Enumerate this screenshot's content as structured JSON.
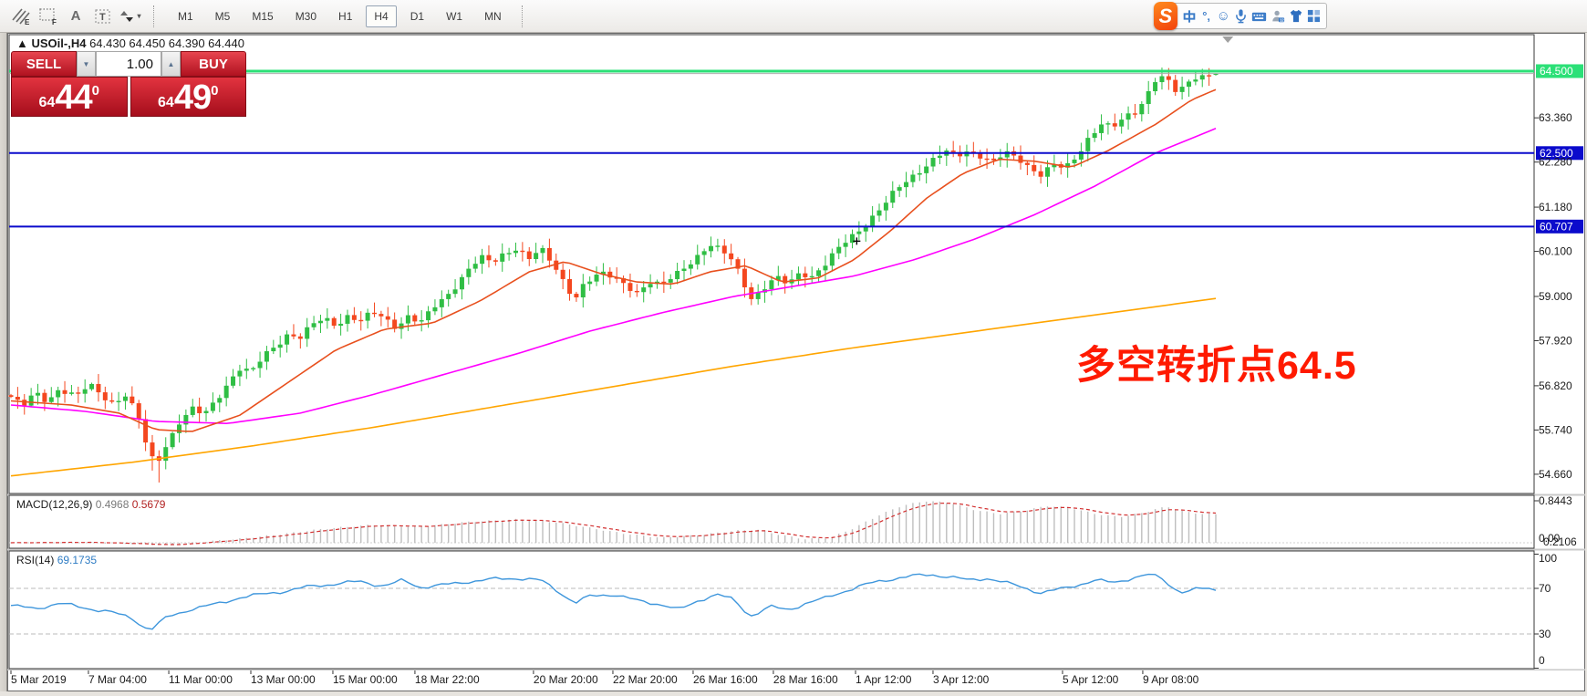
{
  "toolbar": {
    "icons": [
      {
        "name": "drawing-tool-e-icon",
        "label": "E"
      },
      {
        "name": "drawing-tool-f-icon",
        "label": "F"
      },
      {
        "name": "text-label-button",
        "label": "A"
      },
      {
        "name": "text-box-button",
        "label": "T"
      },
      {
        "name": "sort-arrows-button",
        "label": "▾"
      }
    ],
    "timeframes": [
      "M1",
      "M5",
      "M15",
      "M30",
      "H1",
      "H4",
      "D1",
      "W1",
      "MN"
    ],
    "active_timeframe": "H4"
  },
  "ime_bar": {
    "logo": "S",
    "chinese_mode": "中",
    "punctuation": "°‚",
    "emoji": "☺"
  },
  "chart": {
    "title_marker": "▲",
    "symbol_period": "USOil-,H4",
    "ohlc_text": "64.430 64.450 64.390 64.440"
  },
  "trade_panel": {
    "sell_label": "SELL",
    "buy_label": "BUY",
    "volume": "1.00",
    "spin_down": "▼",
    "spin_up": "▲",
    "sell_price": {
      "prefix": "64",
      "big": "44",
      "sup": "0"
    },
    "buy_price": {
      "prefix": "64",
      "big": "49",
      "sup": "0"
    }
  },
  "annotation": {
    "text": "多空转折点64.5",
    "color": "#FF1A00"
  },
  "indicators": {
    "macd": {
      "label": "MACD(12,26,9)",
      "value_main": "0.4968",
      "value_signal": "0.5679",
      "scale_top": "0.8443",
      "scale_mid": "0.2106",
      "scale_zero": "0.00"
    },
    "rsi": {
      "label": "RSI(14)",
      "value": "69.1735",
      "levels": [
        "100",
        "70",
        "30",
        "0"
      ]
    }
  },
  "chart_data": {
    "type": "candlestick",
    "symbol": "USOil-",
    "timeframe": "H4",
    "title": "USOil-,H4 64.430 64.450 64.390 64.440",
    "ohlc_current": {
      "open": 64.43,
      "high": 64.45,
      "low": 64.39,
      "close": 64.44
    },
    "ylim": [
      54.19,
      65.39
    ],
    "grid": false,
    "num_candles": 180,
    "bull_color": "#2FBE44",
    "bear_color": "#F4471F",
    "price_axis_ticks": [
      "63.360",
      "62.280",
      "61.180",
      "60.100",
      "59.000",
      "57.920",
      "56.820",
      "55.740",
      "54.660"
    ],
    "price_lines": [
      {
        "price": 64.5,
        "label": "64.500",
        "color": "#2BE077",
        "width": 3
      },
      {
        "price": 62.5,
        "label": "62.500",
        "color": "#0B0BCC",
        "width": 2
      },
      {
        "price": 60.707,
        "label": "60.707",
        "color": "#0B0BCC",
        "width": 2
      }
    ],
    "bid_line": {
      "price": 64.44,
      "color": "#ABABAB"
    },
    "cross_marker": {
      "f": 0.702,
      "price": 60.35
    },
    "shift_marker_x_f": 1.01,
    "close_path": [
      [
        0,
        56.55
      ],
      [
        0.01,
        56.3
      ],
      [
        0.02,
        56.65
      ],
      [
        0.03,
        56.45
      ],
      [
        0.04,
        56.75
      ],
      [
        0.055,
        56.55
      ],
      [
        0.065,
        56.85
      ],
      [
        0.075,
        56.6
      ],
      [
        0.085,
        56.4
      ],
      [
        0.095,
        56.6
      ],
      [
        0.105,
        56.1
      ],
      [
        0.112,
        55.4
      ],
      [
        0.12,
        54.85
      ],
      [
        0.128,
        55.35
      ],
      [
        0.14,
        55.95
      ],
      [
        0.15,
        56.25
      ],
      [
        0.16,
        56.1
      ],
      [
        0.17,
        56.45
      ],
      [
        0.18,
        56.9
      ],
      [
        0.19,
        57.25
      ],
      [
        0.2,
        57.15
      ],
      [
        0.21,
        57.55
      ],
      [
        0.22,
        57.8
      ],
      [
        0.23,
        58.1
      ],
      [
        0.24,
        58.0
      ],
      [
        0.25,
        58.3
      ],
      [
        0.26,
        58.45
      ],
      [
        0.27,
        58.3
      ],
      [
        0.28,
        58.55
      ],
      [
        0.29,
        58.4
      ],
      [
        0.3,
        58.6
      ],
      [
        0.31,
        58.45
      ],
      [
        0.32,
        58.25
      ],
      [
        0.33,
        58.55
      ],
      [
        0.34,
        58.35
      ],
      [
        0.35,
        58.7
      ],
      [
        0.36,
        58.95
      ],
      [
        0.37,
        59.3
      ],
      [
        0.38,
        59.7
      ],
      [
        0.39,
        59.95
      ],
      [
        0.4,
        59.8
      ],
      [
        0.41,
        60.05
      ],
      [
        0.42,
        60.2
      ],
      [
        0.43,
        59.95
      ],
      [
        0.44,
        60.15
      ],
      [
        0.45,
        59.75
      ],
      [
        0.46,
        59.3
      ],
      [
        0.468,
        58.95
      ],
      [
        0.476,
        59.35
      ],
      [
        0.49,
        59.55
      ],
      [
        0.5,
        59.45
      ],
      [
        0.51,
        59.3
      ],
      [
        0.52,
        59.1
      ],
      [
        0.53,
        59.35
      ],
      [
        0.54,
        59.25
      ],
      [
        0.55,
        59.5
      ],
      [
        0.56,
        59.75
      ],
      [
        0.57,
        60.0
      ],
      [
        0.58,
        60.25
      ],
      [
        0.59,
        60.1
      ],
      [
        0.6,
        59.85
      ],
      [
        0.608,
        59.35
      ],
      [
        0.615,
        58.95
      ],
      [
        0.625,
        59.2
      ],
      [
        0.635,
        59.45
      ],
      [
        0.645,
        59.3
      ],
      [
        0.655,
        59.6
      ],
      [
        0.665,
        59.5
      ],
      [
        0.675,
        59.75
      ],
      [
        0.685,
        60.1
      ],
      [
        0.695,
        60.4
      ],
      [
        0.705,
        60.65
      ],
      [
        0.715,
        60.95
      ],
      [
        0.725,
        61.25
      ],
      [
        0.735,
        61.6
      ],
      [
        0.745,
        61.85
      ],
      [
        0.755,
        62.1
      ],
      [
        0.765,
        62.35
      ],
      [
        0.775,
        62.55
      ],
      [
        0.785,
        62.4
      ],
      [
        0.795,
        62.55
      ],
      [
        0.805,
        62.45
      ],
      [
        0.815,
        62.3
      ],
      [
        0.825,
        62.5
      ],
      [
        0.835,
        62.35
      ],
      [
        0.845,
        62.15
      ],
      [
        0.855,
        62.0
      ],
      [
        0.865,
        62.25
      ],
      [
        0.875,
        62.1
      ],
      [
        0.885,
        62.4
      ],
      [
        0.895,
        62.9
      ],
      [
        0.905,
        63.25
      ],
      [
        0.915,
        63.15
      ],
      [
        0.925,
        63.35
      ],
      [
        0.935,
        63.5
      ],
      [
        0.945,
        64.05
      ],
      [
        0.952,
        64.45
      ],
      [
        0.96,
        64.3
      ],
      [
        0.968,
        63.95
      ],
      [
        0.976,
        64.15
      ],
      [
        0.984,
        64.35
      ],
      [
        0.992,
        64.4
      ],
      [
        1,
        64.44
      ]
    ],
    "ma_fast": {
      "name": "MA fast",
      "color": "#E8501E",
      "points": [
        [
          0,
          56.45
        ],
        [
          0.05,
          56.35
        ],
        [
          0.09,
          56.15
        ],
        [
          0.12,
          55.75
        ],
        [
          0.15,
          55.7
        ],
        [
          0.19,
          56.1
        ],
        [
          0.23,
          56.9
        ],
        [
          0.27,
          57.7
        ],
        [
          0.31,
          58.2
        ],
        [
          0.35,
          58.35
        ],
        [
          0.39,
          58.9
        ],
        [
          0.43,
          59.6
        ],
        [
          0.46,
          59.85
        ],
        [
          0.49,
          59.55
        ],
        [
          0.52,
          59.35
        ],
        [
          0.55,
          59.3
        ],
        [
          0.58,
          59.6
        ],
        [
          0.61,
          59.75
        ],
        [
          0.64,
          59.35
        ],
        [
          0.67,
          59.45
        ],
        [
          0.7,
          59.9
        ],
        [
          0.73,
          60.6
        ],
        [
          0.76,
          61.4
        ],
        [
          0.79,
          62.0
        ],
        [
          0.82,
          62.35
        ],
        [
          0.85,
          62.3
        ],
        [
          0.88,
          62.15
        ],
        [
          0.91,
          62.55
        ],
        [
          0.95,
          63.2
        ],
        [
          0.98,
          63.8
        ],
        [
          1,
          64.05
        ]
      ]
    },
    "ma_mid": {
      "name": "MA mid",
      "color": "#FF00FF",
      "points": [
        [
          0,
          56.35
        ],
        [
          0.06,
          56.2
        ],
        [
          0.12,
          55.95
        ],
        [
          0.18,
          55.9
        ],
        [
          0.24,
          56.15
        ],
        [
          0.3,
          56.6
        ],
        [
          0.36,
          57.1
        ],
        [
          0.42,
          57.6
        ],
        [
          0.48,
          58.15
        ],
        [
          0.54,
          58.6
        ],
        [
          0.6,
          59.0
        ],
        [
          0.66,
          59.3
        ],
        [
          0.7,
          59.5
        ],
        [
          0.75,
          59.9
        ],
        [
          0.8,
          60.4
        ],
        [
          0.85,
          61.0
        ],
        [
          0.9,
          61.7
        ],
        [
          0.95,
          62.5
        ],
        [
          1,
          63.1
        ]
      ]
    },
    "ma_slow": {
      "name": "MA slow",
      "color": "#FFA500",
      "points": [
        [
          0,
          54.62
        ],
        [
          0.1,
          54.95
        ],
        [
          0.2,
          55.35
        ],
        [
          0.3,
          55.8
        ],
        [
          0.4,
          56.3
        ],
        [
          0.5,
          56.8
        ],
        [
          0.6,
          57.3
        ],
        [
          0.7,
          57.75
        ],
        [
          0.8,
          58.15
        ],
        [
          0.9,
          58.55
        ],
        [
          1,
          58.95
        ]
      ]
    },
    "macd": {
      "hist_color": "#BEBEBE",
      "signal_color": "#D23030",
      "ylim": [
        -0.1,
        0.95
      ],
      "values_label": [
        0.4968,
        0.5679
      ],
      "points": [
        [
          0,
          0
        ],
        [
          0.06,
          0.01
        ],
        [
          0.1,
          -0.02
        ],
        [
          0.13,
          -0.05
        ],
        [
          0.16,
          0.02
        ],
        [
          0.19,
          0.08
        ],
        [
          0.22,
          0.16
        ],
        [
          0.26,
          0.28
        ],
        [
          0.3,
          0.36
        ],
        [
          0.34,
          0.32
        ],
        [
          0.38,
          0.42
        ],
        [
          0.42,
          0.47
        ],
        [
          0.45,
          0.42
        ],
        [
          0.48,
          0.3
        ],
        [
          0.51,
          0.18
        ],
        [
          0.54,
          0.1
        ],
        [
          0.57,
          0.15
        ],
        [
          0.6,
          0.24
        ],
        [
          0.62,
          0.26
        ],
        [
          0.64,
          0.15
        ],
        [
          0.66,
          0.07
        ],
        [
          0.68,
          0.1
        ],
        [
          0.7,
          0.3
        ],
        [
          0.72,
          0.55
        ],
        [
          0.74,
          0.75
        ],
        [
          0.76,
          0.84
        ],
        [
          0.78,
          0.8
        ],
        [
          0.8,
          0.66
        ],
        [
          0.82,
          0.58
        ],
        [
          0.84,
          0.64
        ],
        [
          0.86,
          0.74
        ],
        [
          0.88,
          0.7
        ],
        [
          0.9,
          0.58
        ],
        [
          0.92,
          0.52
        ],
        [
          0.94,
          0.6
        ],
        [
          0.95,
          0.68
        ],
        [
          0.96,
          0.72
        ],
        [
          0.97,
          0.65
        ],
        [
          0.98,
          0.6
        ],
        [
          1,
          0.5679
        ]
      ]
    },
    "rsi": {
      "color": "#3E96DC",
      "ylim": [
        0,
        100
      ],
      "value_current": 69.1735,
      "overbought": 70,
      "oversold": 30,
      "points": [
        [
          0,
          55
        ],
        [
          0.02,
          52
        ],
        [
          0.04,
          57
        ],
        [
          0.06,
          53
        ],
        [
          0.08,
          50
        ],
        [
          0.1,
          44
        ],
        [
          0.115,
          33
        ],
        [
          0.13,
          45
        ],
        [
          0.15,
          52
        ],
        [
          0.17,
          56
        ],
        [
          0.19,
          62
        ],
        [
          0.21,
          65
        ],
        [
          0.23,
          68
        ],
        [
          0.25,
          72
        ],
        [
          0.27,
          74
        ],
        [
          0.29,
          76
        ],
        [
          0.31,
          72
        ],
        [
          0.325,
          77
        ],
        [
          0.34,
          71
        ],
        [
          0.36,
          73
        ],
        [
          0.38,
          76
        ],
        [
          0.4,
          78
        ],
        [
          0.42,
          79
        ],
        [
          0.44,
          77
        ],
        [
          0.455,
          67
        ],
        [
          0.468,
          57
        ],
        [
          0.48,
          63
        ],
        [
          0.5,
          65
        ],
        [
          0.52,
          59
        ],
        [
          0.54,
          56
        ],
        [
          0.555,
          51
        ],
        [
          0.57,
          59
        ],
        [
          0.585,
          65
        ],
        [
          0.6,
          60
        ],
        [
          0.608,
          51
        ],
        [
          0.615,
          46
        ],
        [
          0.63,
          54
        ],
        [
          0.645,
          51
        ],
        [
          0.66,
          57
        ],
        [
          0.675,
          61
        ],
        [
          0.69,
          67
        ],
        [
          0.705,
          72
        ],
        [
          0.72,
          76
        ],
        [
          0.735,
          79
        ],
        [
          0.75,
          81
        ],
        [
          0.765,
          82
        ],
        [
          0.78,
          80
        ],
        [
          0.795,
          77
        ],
        [
          0.81,
          79
        ],
        [
          0.825,
          75
        ],
        [
          0.84,
          71
        ],
        [
          0.855,
          66
        ],
        [
          0.87,
          69
        ],
        [
          0.885,
          73
        ],
        [
          0.9,
          77
        ],
        [
          0.915,
          75
        ],
        [
          0.93,
          79
        ],
        [
          0.945,
          82
        ],
        [
          0.955,
          79
        ],
        [
          0.965,
          70
        ],
        [
          0.975,
          66
        ],
        [
          0.985,
          70
        ],
        [
          1,
          69.17
        ]
      ]
    },
    "x_axis_labels": [
      [
        "5 Mar 2019",
        0.0
      ],
      [
        "7 Mar 04:00",
        0.0643
      ],
      [
        "11 Mar 00:00",
        0.131
      ],
      [
        "13 Mar 00:00",
        0.1991
      ],
      [
        "15 Mar 00:00",
        0.2672
      ],
      [
        "18 Mar 22:00",
        0.3353
      ],
      [
        "20 Mar 20:00",
        0.4337
      ],
      [
        "22 Mar 20:00",
        0.4996
      ],
      [
        "26 Mar 16:00",
        0.5662
      ],
      [
        "28 Mar 16:00",
        0.6328
      ],
      [
        "1 Apr 12:00",
        0.701
      ],
      [
        "3 Apr 12:00",
        0.7653
      ],
      [
        "5 Apr 12:00",
        0.8728
      ],
      [
        "9 Apr 08:00",
        0.9394
      ]
    ]
  }
}
